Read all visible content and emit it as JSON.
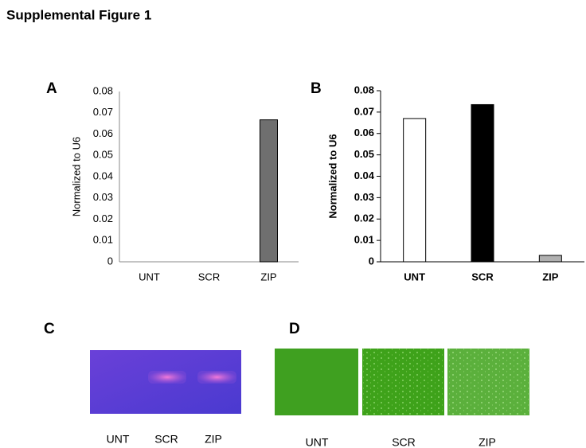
{
  "title": "Supplemental Figure 1",
  "chart_data": [
    {
      "type": "bar",
      "label": "A",
      "ylabel": "Normalized to U6",
      "categories": [
        "UNT",
        "SCR",
        "ZIP"
      ],
      "values": [
        0,
        0,
        0.0667
      ],
      "color": "#6f6f6f",
      "ylim": [
        0,
        0.08
      ],
      "yticks": [
        0,
        0.01,
        0.02,
        0.03,
        0.04,
        0.05,
        0.06,
        0.07,
        0.08
      ]
    },
    {
      "type": "bar",
      "label": "B",
      "ylabel": "Normalized to U6",
      "categories": [
        "UNT",
        "SCR",
        "ZIP"
      ],
      "values": [
        0.067,
        0.0735,
        0.003
      ],
      "colors": [
        "#ffffff",
        "#000000",
        "#b0b0b0"
      ],
      "ylim": [
        0,
        0.08
      ],
      "yticks": [
        0,
        0.01,
        0.02,
        0.03,
        0.04,
        0.05,
        0.06,
        0.07,
        0.08
      ],
      "tick_marks": true
    }
  ],
  "panel_c": {
    "label": "C",
    "lanes": [
      "UNT",
      "SCR",
      "ZIP"
    ]
  },
  "panel_d": {
    "label": "D",
    "images": [
      "UNT",
      "SCR",
      "ZIP"
    ]
  }
}
